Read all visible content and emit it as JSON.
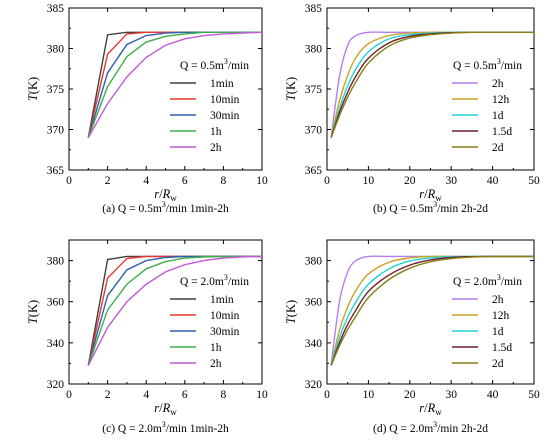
{
  "chart_data": [
    {
      "type": "line",
      "panel": "a",
      "caption": "(a) Q = 0.5m³/min 1min-2h",
      "annotation": "Q = 0.5m³/min",
      "xlabel": "r/Rw",
      "ylabel": "T(K)",
      "xlim": [
        0,
        10
      ],
      "ylim": [
        365,
        385
      ],
      "xticks": [
        0,
        2,
        4,
        6,
        8,
        10
      ],
      "yticks": [
        365,
        370,
        375,
        380,
        385
      ],
      "x": [
        1,
        2,
        3,
        4,
        5,
        6,
        7,
        8,
        9,
        10
      ],
      "series": [
        {
          "name": "1min",
          "color": "#404040",
          "values": [
            369.0,
            381.7,
            382.0,
            382.0,
            382.0,
            382.0,
            382.0,
            382.0,
            382.0,
            382.0
          ]
        },
        {
          "name": "10min",
          "color": "#e8372f",
          "values": [
            369.0,
            379.3,
            381.8,
            382.0,
            382.0,
            382.0,
            382.0,
            382.0,
            382.0,
            382.0
          ]
        },
        {
          "name": "30min",
          "color": "#2e5fb0",
          "values": [
            369.0,
            377.0,
            380.5,
            381.6,
            381.9,
            382.0,
            382.0,
            382.0,
            382.0,
            382.0
          ]
        },
        {
          "name": "1h",
          "color": "#3fae4a",
          "values": [
            369.0,
            375.3,
            379.0,
            380.8,
            381.5,
            381.8,
            382.0,
            382.0,
            382.0,
            382.0
          ]
        },
        {
          "name": "2h",
          "color": "#c05ad8",
          "values": [
            369.0,
            373.2,
            376.5,
            378.9,
            380.4,
            381.2,
            381.6,
            381.8,
            381.9,
            382.0
          ]
        }
      ]
    },
    {
      "type": "line",
      "panel": "b",
      "caption": "(b) Q = 0.5m³/min 2h-2d",
      "annotation": "Q = 0.5m³/min",
      "xlabel": "r/Rw",
      "ylabel": "T(K)",
      "xlim": [
        0,
        50
      ],
      "ylim": [
        365,
        385
      ],
      "xticks": [
        0,
        10,
        20,
        30,
        40,
        50
      ],
      "yticks": [
        365,
        370,
        375,
        380,
        385
      ],
      "x": [
        1,
        3,
        5,
        7,
        10,
        15,
        20,
        25,
        30,
        35,
        40,
        45,
        50
      ],
      "series": [
        {
          "name": "2h",
          "color": "#b57ff0",
          "values": [
            369.0,
            376.5,
            380.4,
            381.6,
            382.0,
            382.0,
            382.0,
            382.0,
            382.0,
            382.0,
            382.0,
            382.0,
            382.0
          ]
        },
        {
          "name": "12h",
          "color": "#c9a227",
          "values": [
            369.0,
            373.5,
            376.7,
            378.9,
            380.6,
            381.6,
            381.9,
            382.0,
            382.0,
            382.0,
            382.0,
            382.0,
            382.0
          ]
        },
        {
          "name": "1d",
          "color": "#1fd4d4",
          "values": [
            369.0,
            372.6,
            375.4,
            377.5,
            379.6,
            381.2,
            381.7,
            381.9,
            382.0,
            382.0,
            382.0,
            382.0,
            382.0
          ]
        },
        {
          "name": "1.5d",
          "color": "#6e1f2e",
          "values": [
            369.0,
            372.1,
            374.6,
            376.6,
            378.8,
            380.7,
            381.5,
            381.8,
            381.95,
            382.0,
            382.0,
            382.0,
            382.0
          ]
        },
        {
          "name": "2d",
          "color": "#8a7d14",
          "values": [
            369.0,
            371.7,
            374.0,
            375.9,
            378.2,
            380.3,
            381.3,
            381.7,
            381.9,
            382.0,
            382.0,
            382.0,
            382.0
          ]
        }
      ]
    },
    {
      "type": "line",
      "panel": "c",
      "caption": "(c) Q = 2.0m³/min 1min-2h",
      "annotation": "Q = 2.0m³/min",
      "xlabel": "r/Rw",
      "ylabel": "T(K)",
      "xlim": [
        0,
        10
      ],
      "ylim": [
        320,
        390
      ],
      "xticks": [
        0,
        2,
        4,
        6,
        8,
        10
      ],
      "yticks": [
        320,
        340,
        360,
        380
      ],
      "x": [
        1,
        2,
        3,
        4,
        5,
        6,
        7,
        8,
        9,
        10
      ],
      "series": [
        {
          "name": "1min",
          "color": "#404040",
          "values": [
            329,
            380.5,
            382.0,
            382.0,
            382.0,
            382.0,
            382.0,
            382.0,
            382.0,
            382.0
          ]
        },
        {
          "name": "10min",
          "color": "#e8372f",
          "values": [
            329,
            371.5,
            381.0,
            382.0,
            382.0,
            382.0,
            382.0,
            382.0,
            382.0,
            382.0
          ]
        },
        {
          "name": "30min",
          "color": "#2e5fb0",
          "values": [
            329,
            363.0,
            375.5,
            380.0,
            381.5,
            382.0,
            382.0,
            382.0,
            382.0,
            382.0
          ]
        },
        {
          "name": "1h",
          "color": "#3fae4a",
          "values": [
            329,
            356.0,
            368.5,
            376.0,
            379.5,
            381.2,
            381.8,
            382.0,
            382.0,
            382.0
          ]
        },
        {
          "name": "2h",
          "color": "#c05ad8",
          "values": [
            329,
            347.5,
            360.0,
            368.5,
            374.5,
            378.0,
            380.0,
            381.2,
            381.8,
            382.0
          ]
        }
      ]
    },
    {
      "type": "line",
      "panel": "d",
      "caption": "(d) Q = 2.0m³/min 2h-2d",
      "annotation": "Q = 2.0m³/min",
      "xlabel": "r/Rw",
      "ylabel": "T(K)",
      "xlim": [
        0,
        50
      ],
      "ylim": [
        320,
        390
      ],
      "xticks": [
        0,
        10,
        20,
        30,
        40,
        50
      ],
      "yticks": [
        320,
        340,
        360,
        380
      ],
      "x": [
        1,
        3,
        5,
        7,
        10,
        15,
        20,
        25,
        30,
        35,
        40,
        45,
        50
      ],
      "series": [
        {
          "name": "2h",
          "color": "#b57ff0",
          "values": [
            329,
            360.0,
            374.5,
            380.0,
            382.0,
            382.0,
            382.0,
            382.0,
            382.0,
            382.0,
            382.0,
            382.0,
            382.0
          ]
        },
        {
          "name": "12h",
          "color": "#c9a227",
          "values": [
            329,
            346.0,
            357.5,
            365.5,
            373.5,
            379.2,
            381.3,
            382.0,
            382.0,
            382.0,
            382.0,
            382.0,
            382.0
          ]
        },
        {
          "name": "1d",
          "color": "#1fd4d4",
          "values": [
            329,
            342.5,
            352.5,
            360.0,
            368.5,
            376.0,
            379.8,
            381.3,
            381.9,
            382.0,
            382.0,
            382.0,
            382.0
          ]
        },
        {
          "name": "1.5d",
          "color": "#6e1f2e",
          "values": [
            329,
            340.0,
            349.0,
            356.0,
            365.0,
            373.0,
            377.8,
            380.3,
            381.5,
            381.9,
            382.0,
            382.0,
            382.0
          ]
        },
        {
          "name": "2d",
          "color": "#8a7d14",
          "values": [
            329,
            338.5,
            346.5,
            353.0,
            362.0,
            370.8,
            376.3,
            379.4,
            381.0,
            381.7,
            382.0,
            382.0,
            382.0
          ]
        }
      ]
    }
  ]
}
